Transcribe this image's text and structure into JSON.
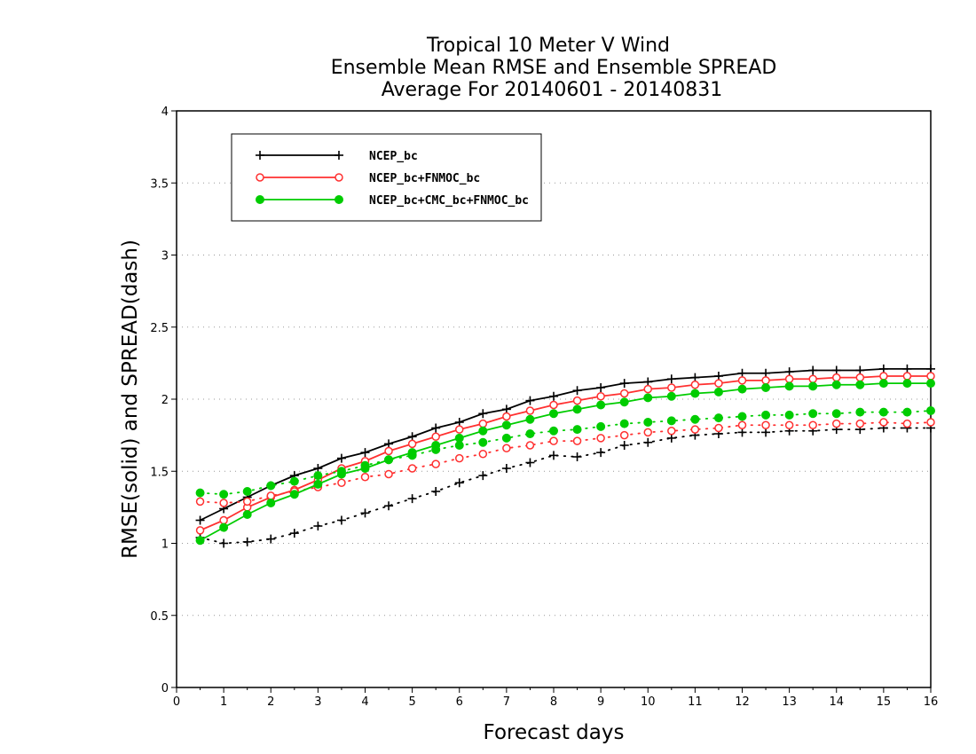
{
  "chart_data": {
    "type": "line",
    "title": [
      "Tropical 10 Meter V Wind",
      "Ensemble Mean RMSE and Ensemble SPREAD",
      "Average For 20140601 - 20140831"
    ],
    "xlabel": "Forecast days",
    "ylabel": "RMSE(solid) and SPREAD(dash)",
    "xlim": [
      0,
      16
    ],
    "ylim": [
      0,
      4
    ],
    "xticks": [
      "0",
      "1",
      "2",
      "3",
      "4",
      "5",
      "6",
      "7",
      "8",
      "9",
      "10",
      "11",
      "12",
      "13",
      "14",
      "15",
      "16"
    ],
    "yticks": [
      "0",
      "0.5",
      "1",
      "1.5",
      "2",
      "2.5",
      "3",
      "3.5",
      "4"
    ],
    "grid": "horizontal-dotted",
    "legend_position": "top-left",
    "x": [
      0.5,
      1,
      1.5,
      2,
      2.5,
      3,
      3.5,
      4,
      4.5,
      5,
      5.5,
      6,
      6.5,
      7,
      7.5,
      8,
      8.5,
      9,
      9.5,
      10,
      10.5,
      11,
      11.5,
      12,
      12.5,
      13,
      13.5,
      14,
      14.5,
      15,
      15.5,
      16
    ],
    "series": [
      {
        "name": "NCEP_bc",
        "color": "#000000",
        "marker": "plus",
        "rmse": [
          1.16,
          1.24,
          1.32,
          1.4,
          1.47,
          1.52,
          1.59,
          1.63,
          1.69,
          1.74,
          1.8,
          1.84,
          1.9,
          1.93,
          1.99,
          2.02,
          2.06,
          2.08,
          2.11,
          2.12,
          2.14,
          2.15,
          2.16,
          2.18,
          2.18,
          2.19,
          2.2,
          2.2,
          2.2,
          2.21,
          2.21,
          2.21
        ],
        "spread": [
          1.04,
          1.0,
          1.01,
          1.03,
          1.07,
          1.12,
          1.16,
          1.21,
          1.26,
          1.31,
          1.36,
          1.42,
          1.47,
          1.52,
          1.56,
          1.61,
          1.6,
          1.63,
          1.68,
          1.7,
          1.73,
          1.75,
          1.76,
          1.77,
          1.77,
          1.78,
          1.78,
          1.79,
          1.79,
          1.8,
          1.8,
          1.8
        ]
      },
      {
        "name": "NCEP_bc+FNMOC_bc",
        "color": "#ff3030",
        "marker": "open-circle",
        "rmse": [
          1.09,
          1.16,
          1.25,
          1.32,
          1.37,
          1.44,
          1.52,
          1.57,
          1.64,
          1.69,
          1.74,
          1.79,
          1.83,
          1.88,
          1.92,
          1.96,
          1.99,
          2.02,
          2.04,
          2.07,
          2.08,
          2.1,
          2.11,
          2.13,
          2.13,
          2.14,
          2.14,
          2.15,
          2.15,
          2.16,
          2.16,
          2.16
        ],
        "spread": [
          1.29,
          1.28,
          1.29,
          1.33,
          1.36,
          1.39,
          1.42,
          1.46,
          1.48,
          1.52,
          1.55,
          1.59,
          1.62,
          1.66,
          1.68,
          1.71,
          1.71,
          1.73,
          1.75,
          1.77,
          1.78,
          1.79,
          1.8,
          1.82,
          1.82,
          1.82,
          1.82,
          1.83,
          1.83,
          1.84,
          1.83,
          1.84
        ]
      },
      {
        "name": "NCEP_bc+CMC_bc+FNMOC_bc",
        "color": "#00cc00",
        "marker": "filled-circle",
        "rmse": [
          1.02,
          1.11,
          1.2,
          1.28,
          1.34,
          1.41,
          1.48,
          1.52,
          1.58,
          1.63,
          1.68,
          1.73,
          1.78,
          1.82,
          1.86,
          1.9,
          1.93,
          1.96,
          1.98,
          2.01,
          2.02,
          2.04,
          2.05,
          2.07,
          2.08,
          2.09,
          2.09,
          2.1,
          2.1,
          2.11,
          2.11,
          2.11
        ],
        "spread": [
          1.35,
          1.34,
          1.36,
          1.4,
          1.43,
          1.47,
          1.5,
          1.54,
          1.58,
          1.61,
          1.65,
          1.68,
          1.7,
          1.73,
          1.76,
          1.78,
          1.79,
          1.81,
          1.83,
          1.84,
          1.85,
          1.86,
          1.87,
          1.88,
          1.89,
          1.89,
          1.9,
          1.9,
          1.91,
          1.91,
          1.91,
          1.92
        ]
      }
    ]
  }
}
